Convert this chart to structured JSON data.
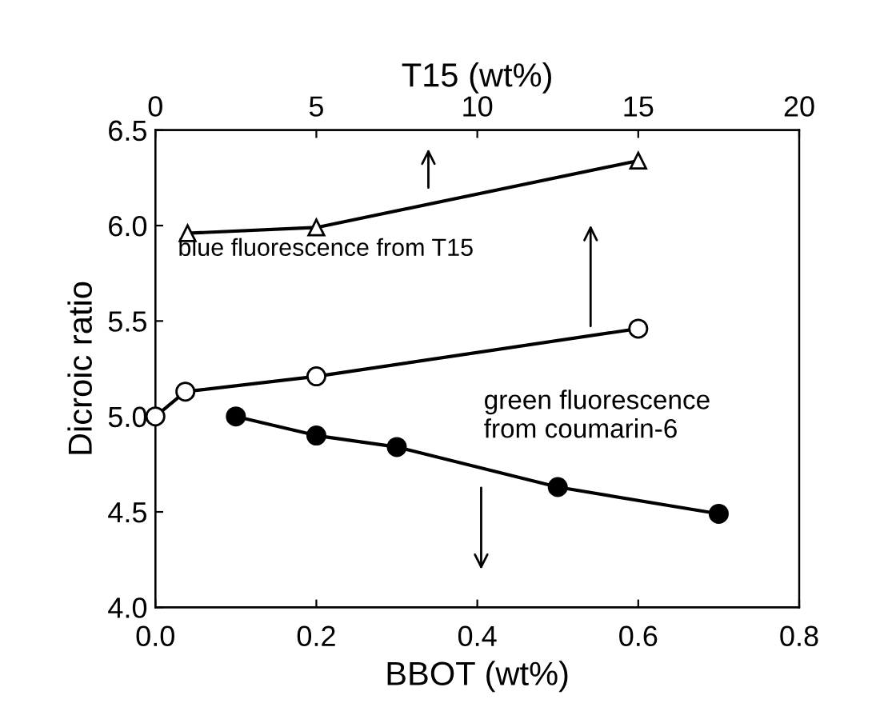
{
  "chart_data": {
    "type": "line",
    "xlabel": "BBOT (wt%)",
    "ylabel": "Dicroic ratio",
    "x2label": "T15 (wt%)",
    "xlim": [
      0,
      0.8
    ],
    "xticks": [
      {
        "value": 0,
        "label": "0.0"
      },
      0.2,
      0.4,
      0.6,
      0.8
    ],
    "x2lim": [
      0,
      20
    ],
    "x2ticks": [
      0,
      5,
      10,
      15,
      20
    ],
    "ylim": [
      4.0,
      6.5
    ],
    "yticks": [
      {
        "value": 4.0,
        "label": "4.0"
      },
      4.5,
      {
        "value": 5.0,
        "label": "5.0"
      },
      5.5,
      {
        "value": 6.0,
        "label": "6.0"
      },
      6.5
    ],
    "grid": false,
    "legend": false,
    "line_style": "solid",
    "series": [
      {
        "axis": "x2",
        "x": [
          1,
          5,
          15
        ],
        "values": [
          5.96,
          5.99,
          6.34
        ],
        "color": "#000000",
        "marker": "triangle"
      },
      {
        "axis": "x2",
        "x": [
          0,
          0.93,
          5,
          15
        ],
        "values": [
          5.0,
          5.13,
          5.21,
          5.46
        ],
        "color": "#000000",
        "marker": "circle"
      },
      {
        "x": [
          0.1,
          0.2,
          0.3,
          0.5,
          0.7
        ],
        "values": [
          5.0,
          4.9,
          4.84,
          4.63,
          4.49
        ],
        "color": "#000000",
        "marker": "circle"
      }
    ],
    "annotations": [
      "blue fluorescence from T15",
      "green fluorescence\nfrom coumarin-6"
    ]
  }
}
